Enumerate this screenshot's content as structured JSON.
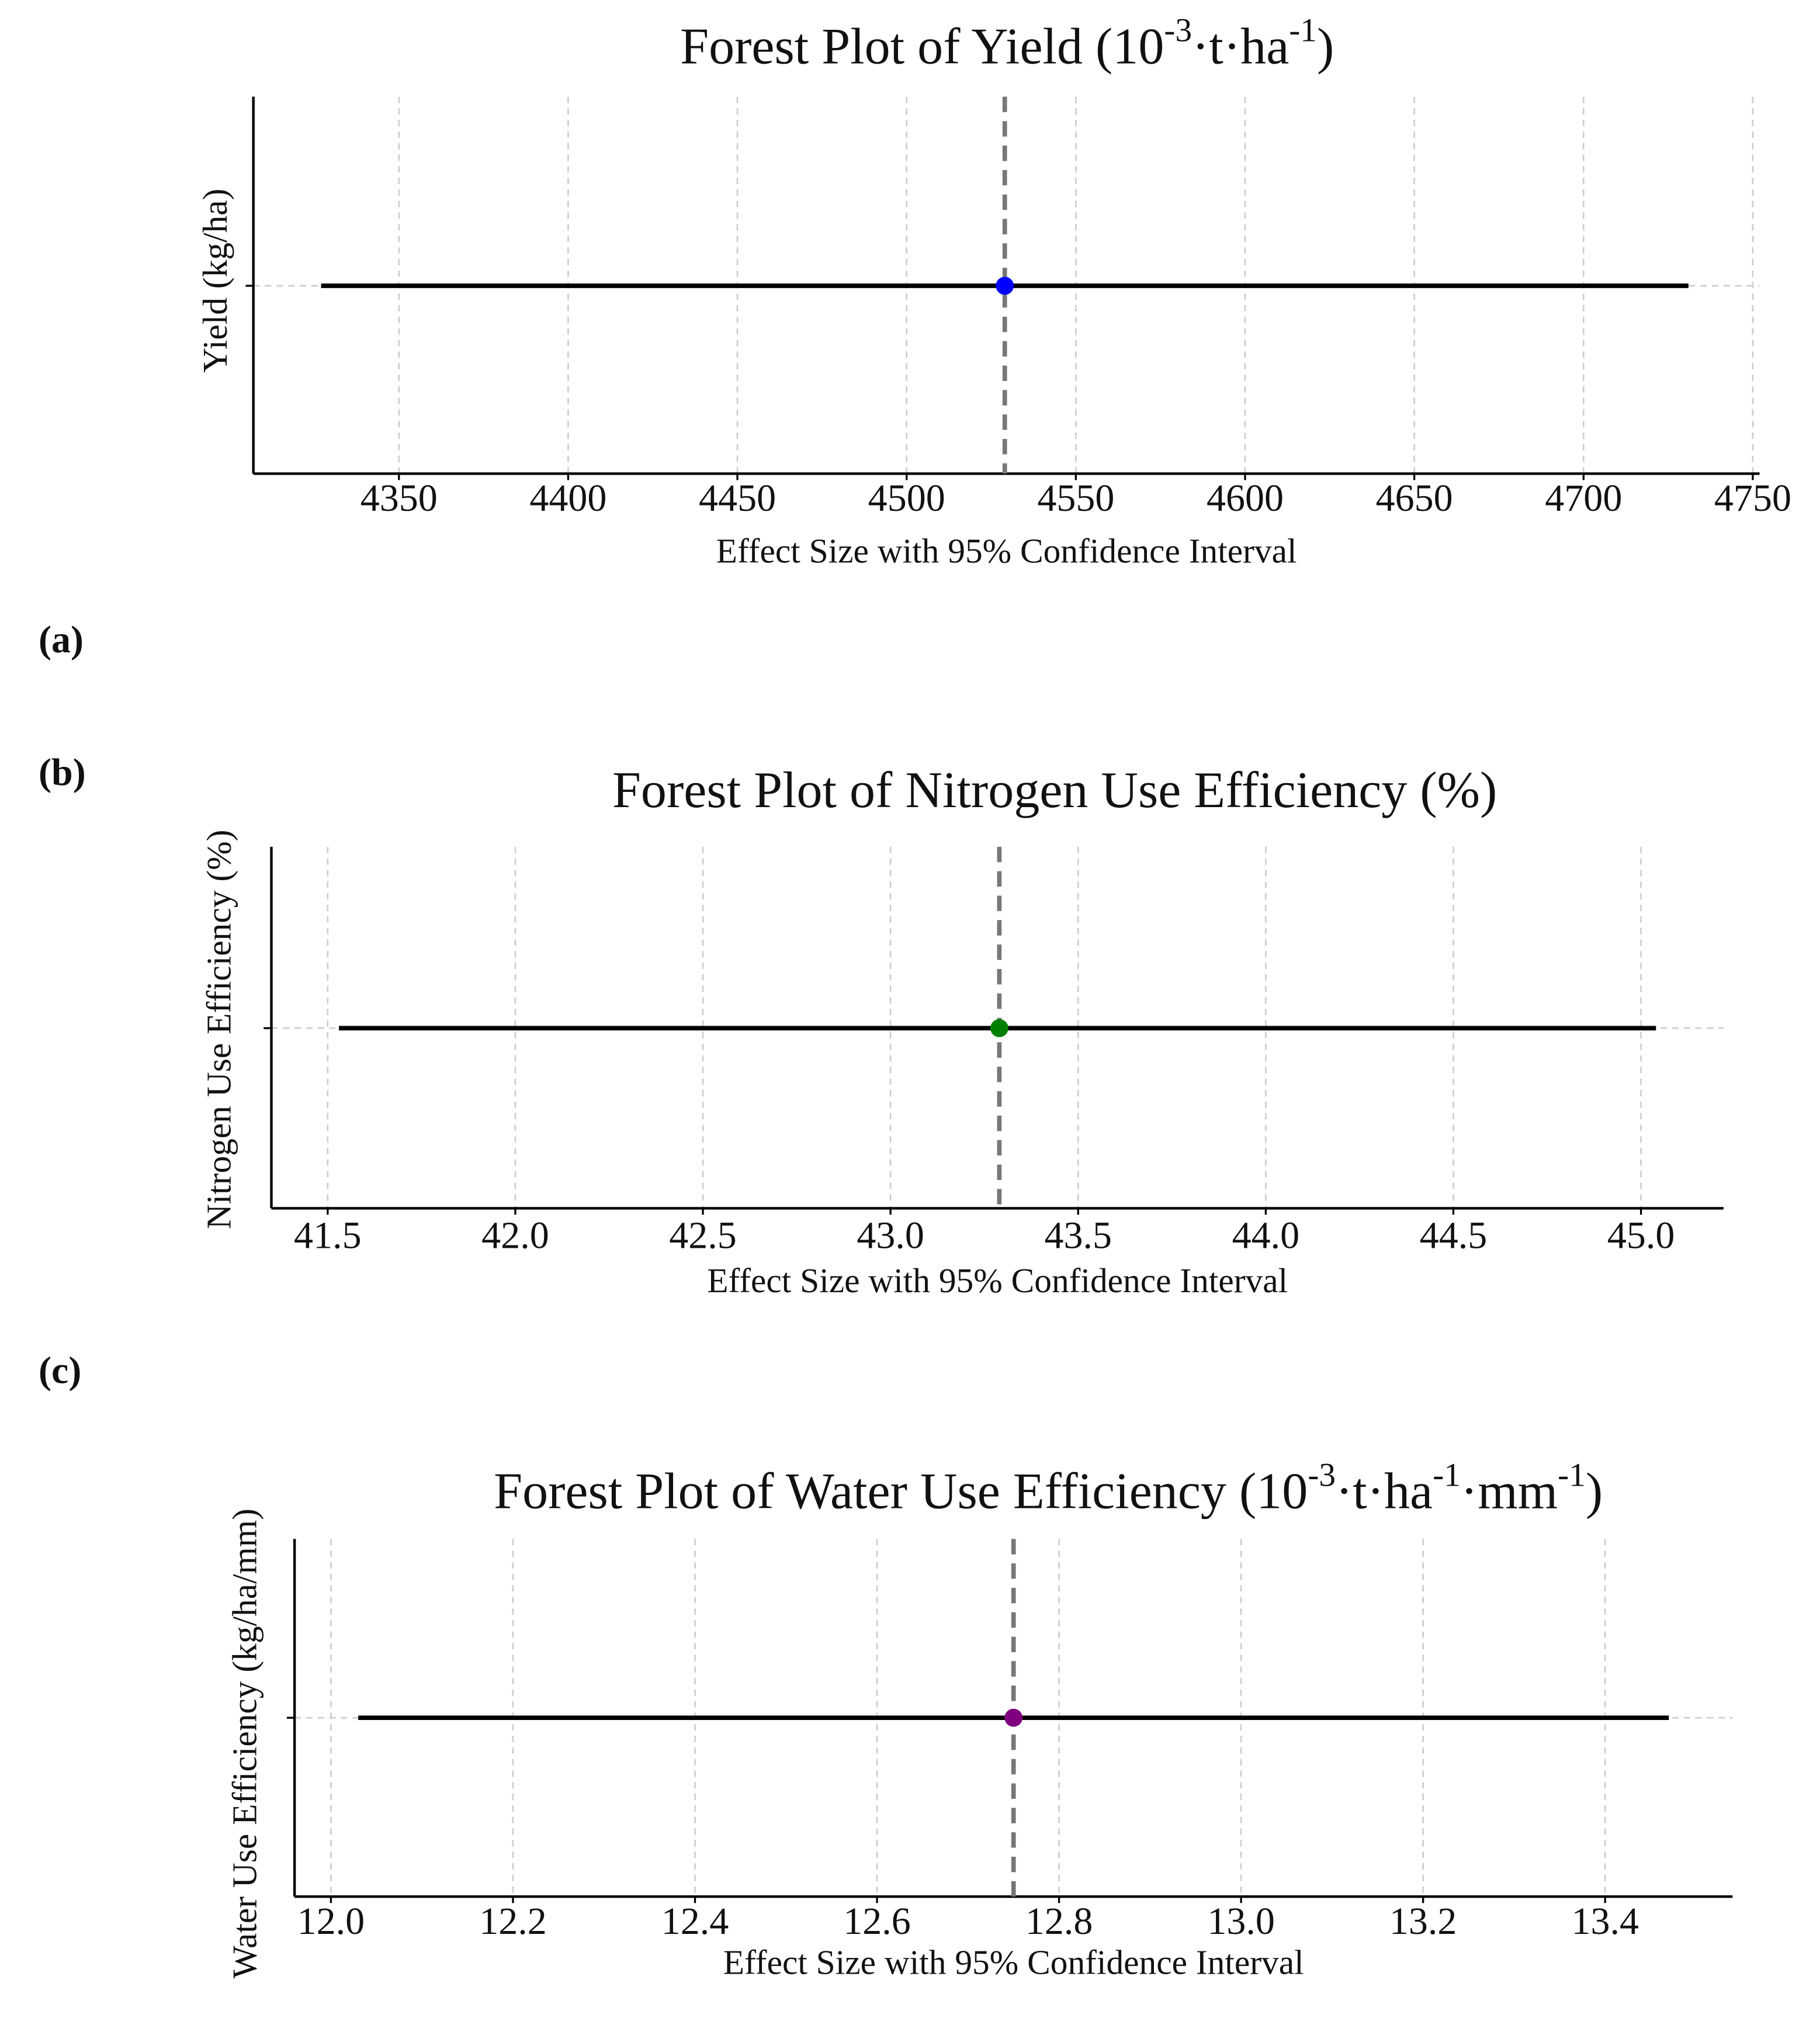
{
  "chart_data": [
    {
      "type": "forest",
      "panel": "(a)",
      "title": [
        "Forest Plot of Yield (10",
        "-3",
        "·t·ha",
        "-1",
        ")"
      ],
      "x_label": "Effect Size with 95% Confidence Interval",
      "y_label": "Yield (kg/ha)",
      "estimate": 4529,
      "ci": [
        4327,
        4731
      ],
      "color": "#0000ff",
      "xlim": [
        4307,
        4752
      ],
      "xticks": [
        4350,
        4400,
        4450,
        4500,
        4550,
        4600,
        4650,
        4700,
        4750
      ],
      "grid": true
    },
    {
      "type": "forest",
      "panel": "(b)",
      "title": [
        "Forest Plot of Nitrogen Use Efficiency (%)"
      ],
      "x_label": "Effect Size with 95% Confidence Interval",
      "y_label": "Nitrogen Use Efficiency (%)",
      "estimate": 43.29,
      "ci": [
        41.53,
        45.04
      ],
      "color": "#008000",
      "xlim": [
        41.35,
        45.22
      ],
      "xticks": [
        41.5,
        {
          "value": 42,
          "label": "42.0"
        },
        42.5,
        {
          "value": 43,
          "label": "43.0"
        },
        43.5,
        {
          "value": 44,
          "label": "44.0"
        },
        44.5,
        {
          "value": 45,
          "label": "45.0"
        }
      ],
      "grid": true
    },
    {
      "type": "forest",
      "panel": "(c)",
      "title": [
        "Forest Plot of Water Use Efficiency (10",
        "-3",
        "·t·ha",
        "-1",
        "·mm",
        "-1",
        ")"
      ],
      "x_label": "Effect Size with 95% Confidence Interval",
      "y_label": "Water Use Efficiency (kg/ha/mm)",
      "estimate": 12.75,
      "ci": [
        12.03,
        13.47
      ],
      "color": "#800080",
      "xlim": [
        11.96,
        13.54
      ],
      "xticks": [
        {
          "value": 12,
          "label": "12.0"
        },
        12.2,
        12.4,
        12.6,
        12.8,
        {
          "value": 13,
          "label": "13.0"
        },
        13.2,
        13.4
      ],
      "grid": true
    }
  ]
}
